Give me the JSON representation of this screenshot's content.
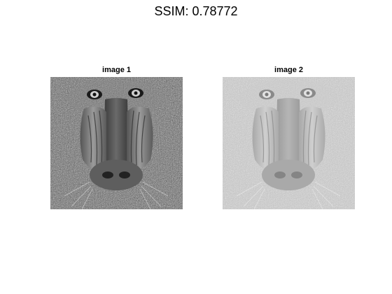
{
  "figure": {
    "title": "SSIM: 0.78772"
  },
  "panels": [
    {
      "title": "image 1",
      "contrast": "normal"
    },
    {
      "title": "image 2",
      "contrast": "reduced"
    }
  ]
}
